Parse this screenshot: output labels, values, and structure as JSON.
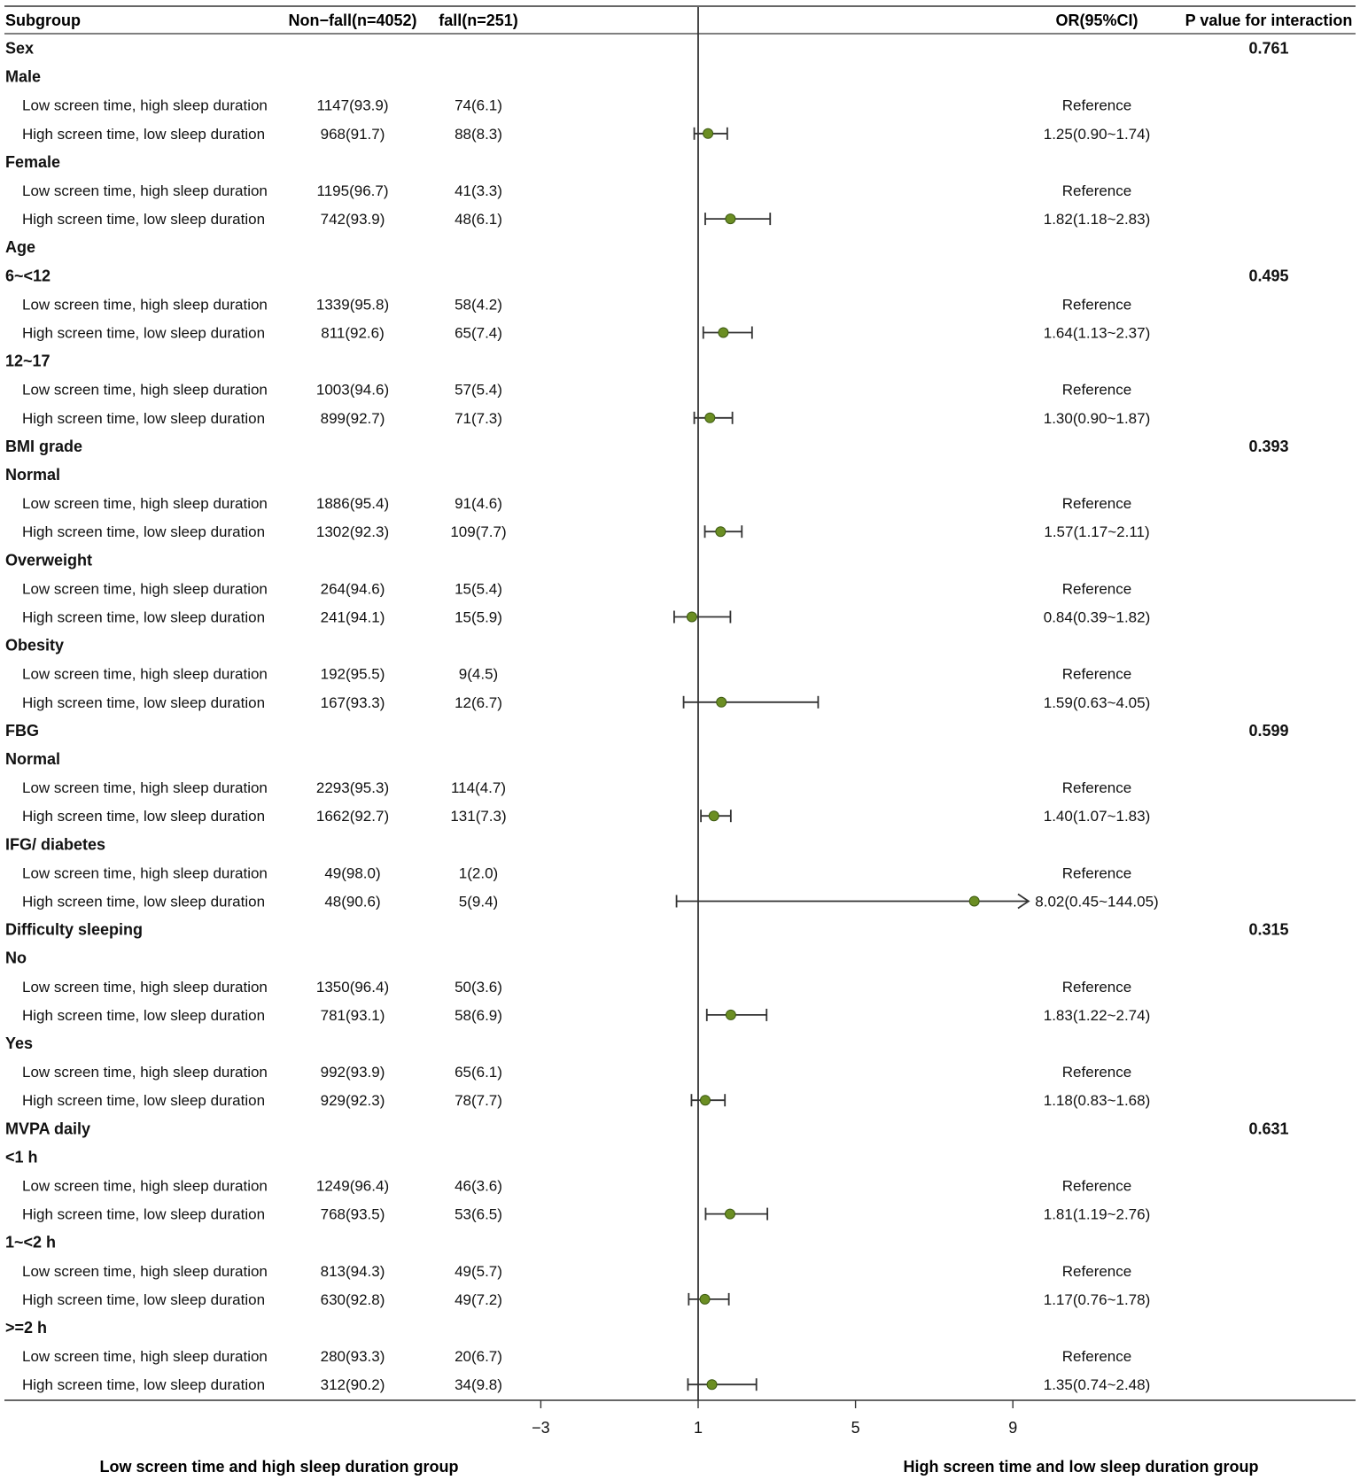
{
  "headers": {
    "subgroup": "Subgroup",
    "nonfall": "Non−fall(n=4052)",
    "fall": "fall(n=251)",
    "or": "OR(95%CI)",
    "p": "P value for interaction"
  },
  "bottom_labels": {
    "left": "Low screen time and high sleep duration group",
    "right": "High screen time and low sleep duration group"
  },
  "colors": {
    "point": "#6b8e23",
    "line": "#333333",
    "text": "#111111"
  },
  "chart_data": {
    "type": "forest",
    "reference_line": 1,
    "xlim": [
      -4,
      9.4
    ],
    "xticks": [
      -3,
      1,
      5,
      9
    ],
    "xtick_labels": [
      "−3",
      "1",
      "5",
      "9"
    ],
    "rows": [
      {
        "kind": "group",
        "label": "Sex",
        "p": "0.761"
      },
      {
        "kind": "subgroup",
        "label": "Male"
      },
      {
        "kind": "data",
        "label": "Low screen time, high sleep duration",
        "nonfall": "1147(93.9)",
        "fall": "74(6.1)",
        "or_text": "Reference"
      },
      {
        "kind": "data",
        "label": "High screen time, low sleep duration",
        "nonfall": "968(91.7)",
        "fall": "88(8.3)",
        "or_text": "1.25(0.90~1.74)",
        "or": 1.25,
        "lo": 0.9,
        "hi": 1.74
      },
      {
        "kind": "subgroup",
        "label": "Female"
      },
      {
        "kind": "data",
        "label": "Low screen time, high sleep duration",
        "nonfall": "1195(96.7)",
        "fall": "41(3.3)",
        "or_text": "Reference"
      },
      {
        "kind": "data",
        "label": "High screen time, low sleep duration",
        "nonfall": "742(93.9)",
        "fall": "48(6.1)",
        "or_text": "1.82(1.18~2.83)",
        "or": 1.82,
        "lo": 1.18,
        "hi": 2.83
      },
      {
        "kind": "group",
        "label": "Age"
      },
      {
        "kind": "subgroup",
        "label": "6~<12",
        "p": "0.495"
      },
      {
        "kind": "data",
        "label": "Low screen time, high sleep duration",
        "nonfall": "1339(95.8)",
        "fall": "58(4.2)",
        "or_text": "Reference"
      },
      {
        "kind": "data",
        "label": "High screen time, low sleep duration",
        "nonfall": "811(92.6)",
        "fall": "65(7.4)",
        "or_text": "1.64(1.13~2.37)",
        "or": 1.64,
        "lo": 1.13,
        "hi": 2.37
      },
      {
        "kind": "subgroup",
        "label": "12~17"
      },
      {
        "kind": "data",
        "label": "Low screen time, high sleep duration",
        "nonfall": "1003(94.6)",
        "fall": "57(5.4)",
        "or_text": "Reference"
      },
      {
        "kind": "data",
        "label": "High screen time, low sleep duration",
        "nonfall": "899(92.7)",
        "fall": "71(7.3)",
        "or_text": "1.30(0.90~1.87)",
        "or": 1.3,
        "lo": 0.9,
        "hi": 1.87
      },
      {
        "kind": "group",
        "label": "BMI grade",
        "p": "0.393"
      },
      {
        "kind": "subgroup",
        "label": "Normal"
      },
      {
        "kind": "data",
        "label": "Low screen time, high sleep duration",
        "nonfall": "1886(95.4)",
        "fall": "91(4.6)",
        "or_text": "Reference"
      },
      {
        "kind": "data",
        "label": "High screen time, low sleep duration",
        "nonfall": "1302(92.3)",
        "fall": "109(7.7)",
        "or_text": "1.57(1.17~2.11)",
        "or": 1.57,
        "lo": 1.17,
        "hi": 2.11
      },
      {
        "kind": "subgroup",
        "label": "Overweight"
      },
      {
        "kind": "data",
        "label": "Low screen time, high sleep duration",
        "nonfall": "264(94.6)",
        "fall": "15(5.4)",
        "or_text": "Reference"
      },
      {
        "kind": "data",
        "label": "High screen time, low sleep duration",
        "nonfall": "241(94.1)",
        "fall": "15(5.9)",
        "or_text": "0.84(0.39~1.82)",
        "or": 0.84,
        "lo": 0.39,
        "hi": 1.82
      },
      {
        "kind": "subgroup",
        "label": "Obesity"
      },
      {
        "kind": "data",
        "label": "Low screen time, high sleep duration",
        "nonfall": "192(95.5)",
        "fall": "9(4.5)",
        "or_text": "Reference"
      },
      {
        "kind": "data",
        "label": "High screen time, low sleep duration",
        "nonfall": "167(93.3)",
        "fall": "12(6.7)",
        "or_text": "1.59(0.63~4.05)",
        "or": 1.59,
        "lo": 0.63,
        "hi": 4.05
      },
      {
        "kind": "group",
        "label": "FBG",
        "p": "0.599"
      },
      {
        "kind": "subgroup",
        "label": "Normal"
      },
      {
        "kind": "data",
        "label": "Low screen time, high sleep duration",
        "nonfall": "2293(95.3)",
        "fall": "114(4.7)",
        "or_text": "Reference"
      },
      {
        "kind": "data",
        "label": "High screen time, low sleep duration",
        "nonfall": "1662(92.7)",
        "fall": "131(7.3)",
        "or_text": "1.40(1.07~1.83)",
        "or": 1.4,
        "lo": 1.07,
        "hi": 1.83
      },
      {
        "kind": "subgroup",
        "label": "IFG/ diabetes"
      },
      {
        "kind": "data",
        "label": "Low screen time, high sleep duration",
        "nonfall": "49(98.0)",
        "fall": "1(2.0)",
        "or_text": "Reference"
      },
      {
        "kind": "data",
        "label": "High screen time, low sleep duration",
        "nonfall": "48(90.6)",
        "fall": "5(9.4)",
        "or_text": "8.02(0.45~144.05)",
        "or": 8.02,
        "lo": 0.45,
        "hi": 144.05,
        "arrow": true
      },
      {
        "kind": "group",
        "label": "Difficulty sleeping",
        "p": "0.315"
      },
      {
        "kind": "subgroup",
        "label": "No"
      },
      {
        "kind": "data",
        "label": "Low screen time, high sleep duration",
        "nonfall": "1350(96.4)",
        "fall": "50(3.6)",
        "or_text": "Reference"
      },
      {
        "kind": "data",
        "label": "High screen time, low sleep duration",
        "nonfall": "781(93.1)",
        "fall": "58(6.9)",
        "or_text": "1.83(1.22~2.74)",
        "or": 1.83,
        "lo": 1.22,
        "hi": 2.74
      },
      {
        "kind": "subgroup",
        "label": "Yes"
      },
      {
        "kind": "data",
        "label": "Low screen time, high sleep duration",
        "nonfall": "992(93.9)",
        "fall": "65(6.1)",
        "or_text": "Reference"
      },
      {
        "kind": "data",
        "label": "High screen time, low sleep duration",
        "nonfall": "929(92.3)",
        "fall": "78(7.7)",
        "or_text": "1.18(0.83~1.68)",
        "or": 1.18,
        "lo": 0.83,
        "hi": 1.68
      },
      {
        "kind": "group",
        "label": "MVPA daily",
        "p": "0.631"
      },
      {
        "kind": "subgroup",
        "label": "<1 h"
      },
      {
        "kind": "data",
        "label": "Low screen time, high sleep duration",
        "nonfall": "1249(96.4)",
        "fall": "46(3.6)",
        "or_text": "Reference"
      },
      {
        "kind": "data",
        "label": "High screen time, low sleep duration",
        "nonfall": "768(93.5)",
        "fall": "53(6.5)",
        "or_text": "1.81(1.19~2.76)",
        "or": 1.81,
        "lo": 1.19,
        "hi": 2.76
      },
      {
        "kind": "subgroup",
        "label": "1~<2 h"
      },
      {
        "kind": "data",
        "label": "Low screen time, high sleep duration",
        "nonfall": "813(94.3)",
        "fall": "49(5.7)",
        "or_text": "Reference"
      },
      {
        "kind": "data",
        "label": "High screen time, low sleep duration",
        "nonfall": "630(92.8)",
        "fall": "49(7.2)",
        "or_text": "1.17(0.76~1.78)",
        "or": 1.17,
        "lo": 0.76,
        "hi": 1.78
      },
      {
        "kind": "subgroup",
        "label": ">=2 h"
      },
      {
        "kind": "data",
        "label": "Low screen time, high sleep duration",
        "nonfall": "280(93.3)",
        "fall": "20(6.7)",
        "or_text": "Reference"
      },
      {
        "kind": "data",
        "label": "High screen time, low sleep duration",
        "nonfall": "312(90.2)",
        "fall": "34(9.8)",
        "or_text": "1.35(0.74~2.48)",
        "or": 1.35,
        "lo": 0.74,
        "hi": 2.48
      }
    ]
  }
}
